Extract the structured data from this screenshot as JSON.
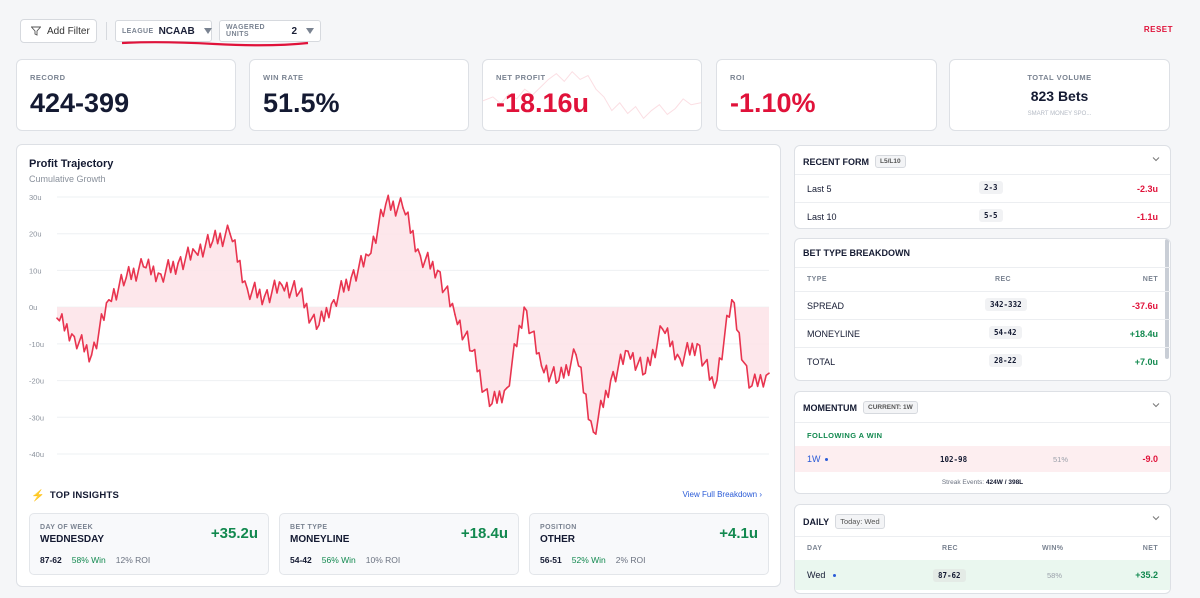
{
  "toolbar": {
    "add_filter": "Add Filter",
    "league_label": "LEAGUE",
    "league_value": "NCAAB",
    "units_label": "WAGERED UNITS",
    "units_value": "2",
    "reset": "RESET"
  },
  "kpis": {
    "record": {
      "label": "RECORD",
      "value": "424-399"
    },
    "win_rate": {
      "label": "WIN RATE",
      "value": "51.5%"
    },
    "net_profit": {
      "label": "NET PROFIT",
      "value": "-18.16u"
    },
    "roi": {
      "label": "ROI",
      "value": "-1.10%"
    },
    "volume": {
      "label": "TOTAL VOLUME",
      "value": "823 Bets",
      "sub": "SMART MONEY SPO..."
    }
  },
  "profit_chart": {
    "title": "Profit Trajectory",
    "subtitle": "Cumulative Growth"
  },
  "chart_data": {
    "type": "area",
    "title": "Profit Trajectory",
    "subtitle": "Cumulative Growth",
    "y_ticks": [
      "30u",
      "20u",
      "10u",
      "0u",
      "-10u",
      "-20u",
      "-30u",
      "-40u"
    ],
    "ylim": [
      -40,
      30
    ],
    "x": [
      0,
      20,
      40,
      60,
      80,
      100,
      120,
      140,
      160,
      180,
      200,
      220,
      240,
      260,
      280,
      300,
      320,
      340,
      360,
      380,
      400,
      420,
      440,
      460,
      480,
      500,
      520,
      540,
      560,
      580,
      600,
      620,
      640,
      660,
      680,
      700,
      720,
      740,
      760,
      780,
      800,
      823
    ],
    "values": [
      -3,
      -8,
      -13,
      2,
      8,
      11,
      9,
      12,
      15,
      18,
      20,
      5,
      3,
      6,
      4,
      -6,
      2,
      8,
      14,
      28,
      27,
      14,
      10,
      -2,
      -12,
      -27,
      -22,
      0,
      -16,
      -20,
      -13,
      -34,
      -20,
      -12,
      -18,
      -6,
      -14,
      -10,
      -22,
      2,
      -22,
      -18
    ],
    "legend": "none",
    "grid": true
  },
  "insights": {
    "title": "TOP INSIGHTS",
    "link": "View Full Breakdown",
    "cards": [
      {
        "label": "DAY OF WEEK",
        "name": "WEDNESDAY",
        "amount": "+35.2u",
        "record": "87-62",
        "win": "58% Win",
        "roi": "12% ROI"
      },
      {
        "label": "BET TYPE",
        "name": "MONEYLINE",
        "amount": "+18.4u",
        "record": "54-42",
        "win": "56% Win",
        "roi": "10% ROI"
      },
      {
        "label": "POSITION",
        "name": "OTHER",
        "amount": "+4.1u",
        "record": "56-51",
        "win": "52% Win",
        "roi": "2% ROI"
      }
    ]
  },
  "recent_form": {
    "title": "RECENT FORM",
    "tag": "L5/L10",
    "rows": [
      {
        "label": "Last 5",
        "record": "2-3",
        "net": "-2.3u"
      },
      {
        "label": "Last 10",
        "record": "5-5",
        "net": "-1.1u"
      }
    ]
  },
  "bet_type": {
    "title": "BET TYPE BREAKDOWN",
    "cols": [
      "TYPE",
      "REC",
      "NET"
    ],
    "rows": [
      {
        "type": "SPREAD",
        "rec": "342-332",
        "net": "-37.6u"
      },
      {
        "type": "MONEYLINE",
        "rec": "54-42",
        "net": "+18.4u"
      },
      {
        "type": "TOTAL",
        "rec": "28-22",
        "net": "+7.0u"
      }
    ]
  },
  "momentum": {
    "title": "MOMENTUM",
    "tag": "CURRENT: 1W",
    "section": "FOLLOWING A WIN",
    "row": {
      "label": "1W",
      "rec": "102-98",
      "pct": "51%",
      "net": "-9.0"
    },
    "footer_prefix": "Streak Events:",
    "footer_value": "424W / 398L"
  },
  "daily": {
    "title": "DAILY",
    "tag": "Today: Wed",
    "cols": [
      "DAY",
      "REC",
      "WIN%",
      "NET"
    ],
    "row": {
      "day": "Wed",
      "rec": "87-62",
      "pct": "58%",
      "net": "+35.2"
    }
  },
  "colors": {
    "negative": "#e0123a",
    "positive": "#12894f",
    "accent": "#2a5bd7"
  }
}
